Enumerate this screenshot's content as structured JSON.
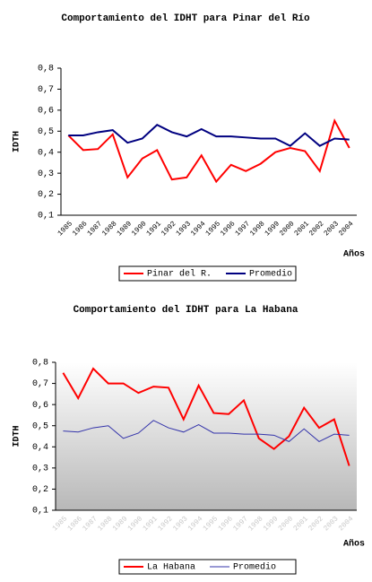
{
  "chart_data": [
    {
      "type": "line",
      "title": "Comportamiento del IDHT para Pinar del Río",
      "y_label": "IDTH",
      "x_label": "Años",
      "categories": [
        "1985",
        "1986",
        "1987",
        "1988",
        "1989",
        "1990",
        "1991",
        "1992",
        "1993",
        "1994",
        "1995",
        "1996",
        "1997",
        "1998",
        "1999",
        "2000",
        "2001",
        "2002",
        "2003",
        "2004"
      ],
      "series": [
        {
          "name": "Pinar del R.",
          "color": "#ff0000",
          "values": [
            0.48,
            0.41,
            0.415,
            0.485,
            0.28,
            0.37,
            0.41,
            0.27,
            0.28,
            0.385,
            0.26,
            0.34,
            0.31,
            0.345,
            0.4,
            0.42,
            0.405,
            0.31,
            0.55,
            0.42
          ]
        },
        {
          "name": "Promedio",
          "color": "#000080",
          "values": [
            0.48,
            0.48,
            0.495,
            0.505,
            0.445,
            0.465,
            0.53,
            0.495,
            0.475,
            0.51,
            0.475,
            0.475,
            0.47,
            0.465,
            0.465,
            0.43,
            0.49,
            0.43,
            0.465,
            0.46
          ]
        }
      ],
      "ylim": [
        0.1,
        0.8
      ],
      "yticks": [
        {
          "value": 0.1,
          "label": "0,1"
        },
        {
          "value": 0.2,
          "label": "0,2"
        },
        {
          "value": 0.3,
          "label": "0,3"
        },
        {
          "value": 0.4,
          "label": "0,4"
        },
        {
          "value": 0.5,
          "label": "0,5"
        },
        {
          "value": 0.6,
          "label": "0,6"
        },
        {
          "value": 0.7,
          "label": "0,7"
        },
        {
          "value": 0.8,
          "label": "0,8"
        }
      ],
      "grid": false,
      "legend": "bottom"
    },
    {
      "type": "line",
      "title": "Comportamiento del IDHT para La Habana",
      "y_label": "IDTH",
      "x_label": "Años",
      "categories": [
        "1985",
        "1986",
        "1987",
        "1988",
        "1989",
        "1990",
        "1991",
        "1992",
        "1993",
        "1994",
        "1995",
        "1996",
        "1997",
        "1998",
        "1999",
        "2000",
        "2001",
        "2002",
        "2003",
        "2004"
      ],
      "series": [
        {
          "name": "La Habana",
          "color": "#ff0000",
          "values": [
            0.75,
            0.63,
            0.77,
            0.7,
            0.7,
            0.655,
            0.685,
            0.68,
            0.53,
            0.69,
            0.56,
            0.555,
            0.62,
            0.44,
            0.39,
            0.45,
            0.585,
            0.49,
            0.53,
            0.31
          ]
        },
        {
          "name": "Promedio",
          "color": "#3333aa",
          "values": [
            0.475,
            0.47,
            0.49,
            0.5,
            0.44,
            0.465,
            0.525,
            0.49,
            0.47,
            0.505,
            0.465,
            0.465,
            0.46,
            0.46,
            0.455,
            0.425,
            0.485,
            0.425,
            0.46,
            0.455
          ]
        }
      ],
      "ylim": [
        0.1,
        0.8
      ],
      "yticks": [
        {
          "value": 0.1,
          "label": "0,1"
        },
        {
          "value": 0.2,
          "label": "0,2"
        },
        {
          "value": 0.3,
          "label": "0,3"
        },
        {
          "value": 0.4,
          "label": "0,4"
        },
        {
          "value": 0.5,
          "label": "0,5"
        },
        {
          "value": 0.6,
          "label": "0,6"
        },
        {
          "value": 0.7,
          "label": "0,7"
        },
        {
          "value": 0.8,
          "label": "0,8"
        }
      ],
      "grid": false,
      "legend": "bottom"
    }
  ]
}
